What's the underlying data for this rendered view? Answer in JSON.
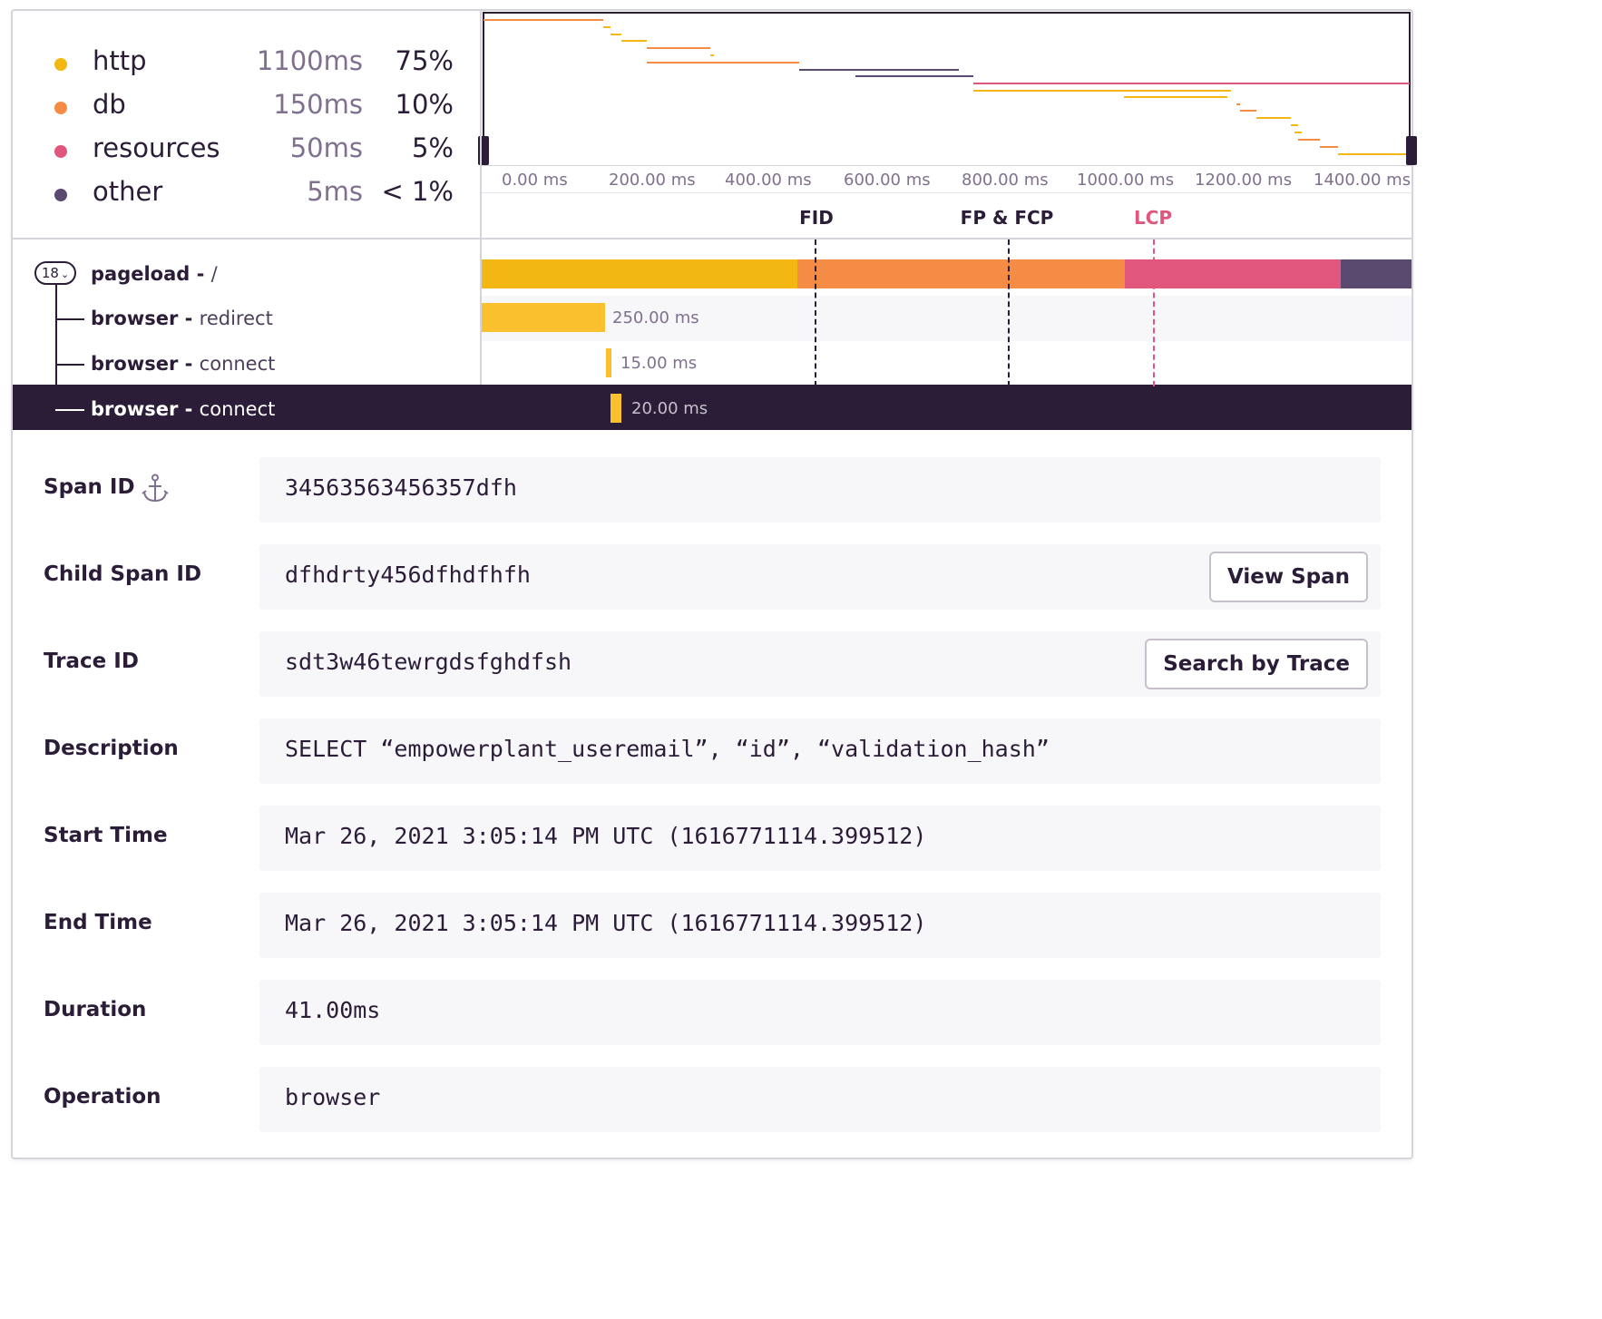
{
  "legend": [
    {
      "name": "http",
      "ms": "1100ms",
      "pct": "75%",
      "color": "#f2b712"
    },
    {
      "name": "db",
      "ms": "150ms",
      "pct": "10%",
      "color": "#f58c46"
    },
    {
      "name": "resources",
      "ms": "50ms",
      "pct": "5%",
      "color": "#e1567c"
    },
    {
      "name": "other",
      "ms": "5ms",
      "pct": "< 1%",
      "color": "#5a4a6f"
    }
  ],
  "axis_ticks": [
    "0.00 ms",
    "200.00 ms",
    "400.00 ms",
    "600.00 ms",
    "800.00 ms",
    "1000.00 ms",
    "1200.00 ms",
    "1400.00 ms"
  ],
  "markers": [
    {
      "label": "FID",
      "color": "#2b1d38"
    },
    {
      "label": "FP & FCP",
      "color": "#2b1d38"
    },
    {
      "label": "LCP",
      "color": "#e1567c"
    }
  ],
  "tree": {
    "count": "18",
    "root": {
      "op": "pageload",
      "sep": " - ",
      "desc": "/"
    },
    "children": [
      {
        "op": "browser",
        "sep": " - ",
        "desc": "redirect",
        "duration": "250.00 ms"
      },
      {
        "op": "browser",
        "sep": " - ",
        "desc": "connect",
        "duration": "15.00 ms"
      },
      {
        "op": "browser",
        "sep": " - ",
        "desc": "connect",
        "duration": "20.00 ms"
      }
    ]
  },
  "details": {
    "span_id": {
      "label": "Span ID",
      "value": "34563563456357dfh"
    },
    "child_span_id": {
      "label": "Child Span ID",
      "value": "dfhdrty456dfhdfhfh",
      "button": "View Span"
    },
    "trace_id": {
      "label": "Trace ID",
      "value": "sdt3w46tewrgdsfghdfsh",
      "button": "Search by Trace"
    },
    "description": {
      "label": "Description",
      "value": "SELECT “empowerplant_useremail”, “id”, “validation_hash”"
    },
    "start_time": {
      "label": "Start Time",
      "value": "Mar 26, 2021 3:05:14 PM UTC (1616771114.399512)"
    },
    "end_time": {
      "label": "End Time",
      "value": "Mar 26, 2021 3:05:14 PM UTC (1616771114.399512)"
    },
    "duration": {
      "label": "Duration",
      "value": "41.00ms"
    },
    "operation": {
      "label": "Operation",
      "value": "browser"
    }
  },
  "colors": {
    "http": "#f2b712",
    "db": "#f58c46",
    "resources": "#e1567c",
    "other": "#5a4a6f",
    "selected_row": "#2b1d38"
  }
}
